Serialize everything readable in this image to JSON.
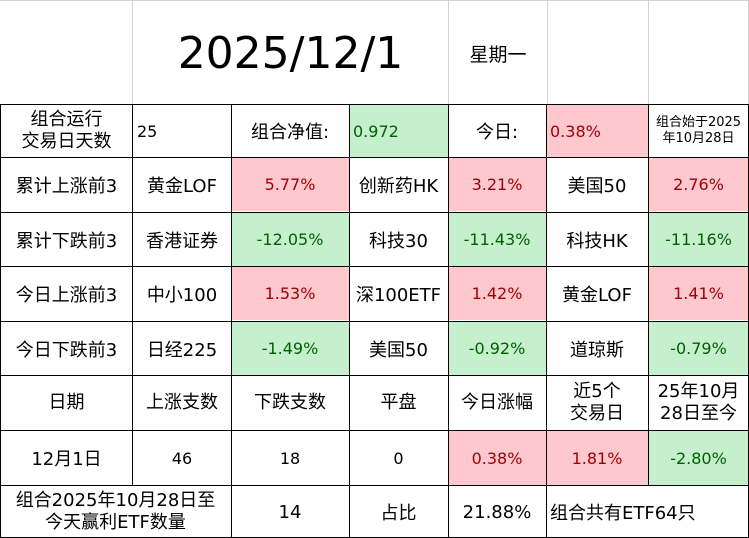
{
  "header": {
    "date": "2025/12/1",
    "weekday": "星期一"
  },
  "summary": {
    "days_label": "组合运行\n交易日天数",
    "days_value": "25",
    "nav_label": "组合净值:",
    "nav_value": "0.972",
    "today_label": "今日:",
    "today_value": "0.38%",
    "start_note": "组合始于2025\n年10月28日"
  },
  "rows": [
    {
      "label": "累计上涨前3",
      "items": [
        {
          "name": "黄金LOF",
          "value": "5.77%",
          "tone": "pink"
        },
        {
          "name": "创新药HK",
          "value": "3.21%",
          "tone": "pink"
        },
        {
          "name": "美国50",
          "value": "2.76%",
          "tone": "pink"
        }
      ]
    },
    {
      "label": "累计下跌前3",
      "items": [
        {
          "name": "香港证券",
          "value": "-12.05%",
          "tone": "green"
        },
        {
          "name": "科技30",
          "value": "-11.43%",
          "tone": "green"
        },
        {
          "name": "科技HK",
          "value": "-11.16%",
          "tone": "green"
        }
      ]
    },
    {
      "label": "今日上涨前3",
      "items": [
        {
          "name": "中小100",
          "value": "1.53%",
          "tone": "pink"
        },
        {
          "name": "深100ETF",
          "value": "1.42%",
          "tone": "pink"
        },
        {
          "name": "黄金LOF",
          "value": "1.41%",
          "tone": "pink"
        }
      ]
    },
    {
      "label": "今日下跌前3",
      "items": [
        {
          "name": "日经225",
          "value": "-1.49%",
          "tone": "green"
        },
        {
          "name": "美国50",
          "value": "-0.92%",
          "tone": "green"
        },
        {
          "name": "道琼斯",
          "value": "-0.79%",
          "tone": "green"
        }
      ]
    }
  ],
  "stats": {
    "headers": [
      "日期",
      "上涨支数",
      "下跌支数",
      "平盘",
      "今日涨幅",
      "近5个\n交易日",
      "25年10月\n28日至今"
    ],
    "values": [
      "12月1日",
      "46",
      "18",
      "0",
      "0.38%",
      "1.81%",
      "-2.80%"
    ]
  },
  "footer": {
    "profit_label": "组合2025年10月28日至\n今天赢利ETF数量",
    "profit_count": "14",
    "ratio_label": "占比",
    "ratio_value": "21.88%",
    "total_label": "组合共有ETF64只"
  },
  "colors": {
    "positive_bg": "#ffc7ce",
    "positive_text": "#9c0006",
    "negative_bg": "#c6efce",
    "negative_text": "#006100"
  }
}
